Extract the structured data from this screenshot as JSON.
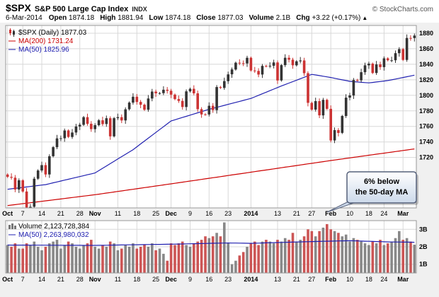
{
  "header": {
    "symbol": "$SPX",
    "name": "S&P 500 Large Cap Index",
    "exchange": "INDX",
    "copyright": "© StockCharts.com",
    "date": "6-Mar-2014",
    "quote": [
      {
        "label": "Open",
        "value": "1874.18"
      },
      {
        "label": "High",
        "value": "1881.94"
      },
      {
        "label": "Low",
        "value": "1874.18"
      },
      {
        "label": "Close",
        "value": "1877.03"
      },
      {
        "label": "Volume",
        "value": "2.1B"
      },
      {
        "label": "Chg",
        "value": "+3.22 (+0.17%)"
      }
    ],
    "chg_arrow": "▲"
  },
  "price_pane": {
    "legend_symbol": "$SPX (Daily) 1877.03",
    "legend_ma200": "MA(200) 1731.24",
    "legend_ma50": "MA(50) 1825.96"
  },
  "volume_pane": {
    "legend_volume": "Volume 2,123,728,384",
    "legend_ma50": "MA(50) 2,263,980,032"
  },
  "annotation": {
    "line1": "6% below",
    "line2": "the 50-day MA"
  },
  "colors": {
    "candle_up": "#333333",
    "candle_down": "#cc3333",
    "ma200": "#cc0000",
    "ma50": "#2020b0",
    "vol_up": "#888888",
    "vol_down": "#cc5555",
    "vol_ma": "#2020b0",
    "grid": "#d8d8d8",
    "frame": "#999999",
    "annotation_border": "#55607a",
    "annotation_fill": "#ccd9ea"
  },
  "chart_data": {
    "type": "candlestick+volume",
    "title": "$SPX S&P 500 Large Cap Index (Daily) with MA(50), MA(200) and Volume",
    "y_axis_price": {
      "ticks": [
        1880,
        1860,
        1840,
        1820,
        1800,
        1780,
        1760,
        1740,
        1720
      ],
      "range": [
        1655,
        1890
      ]
    },
    "y_axis_volume": {
      "ticks": [
        {
          "v": 3,
          "label": "3B"
        },
        {
          "v": 2,
          "label": "2B"
        },
        {
          "v": 1,
          "label": "1B"
        }
      ],
      "range": [
        0.5,
        3.5
      ]
    },
    "x_ticks": [
      {
        "i": 0,
        "label": "Oct"
      },
      {
        "i": 4,
        "label": "7"
      },
      {
        "i": 9,
        "label": "14"
      },
      {
        "i": 14,
        "label": "21"
      },
      {
        "i": 19,
        "label": "28"
      },
      {
        "i": 23,
        "label": "Nov"
      },
      {
        "i": 29,
        "label": "11"
      },
      {
        "i": 34,
        "label": "18"
      },
      {
        "i": 39,
        "label": "25"
      },
      {
        "i": 43,
        "label": "Dec"
      },
      {
        "i": 48,
        "label": "9"
      },
      {
        "i": 53,
        "label": "16"
      },
      {
        "i": 58,
        "label": "23"
      },
      {
        "i": 64,
        "label": "2014"
      },
      {
        "i": 71,
        "label": "13"
      },
      {
        "i": 76,
        "label": "21"
      },
      {
        "i": 80,
        "label": "27"
      },
      {
        "i": 85,
        "label": "Feb"
      },
      {
        "i": 90,
        "label": "10"
      },
      {
        "i": 95,
        "label": "18"
      },
      {
        "i": 99,
        "label": "24"
      },
      {
        "i": 104,
        "label": "Mar"
      }
    ],
    "closes": [
      1695.0,
      1693.9,
      1678.7,
      1690.5,
      1676.1,
      1655.5,
      1656.4,
      1692.6,
      1703.2,
      1710.1,
      1698.1,
      1721.5,
      1733.2,
      1744.5,
      1744.7,
      1754.7,
      1746.4,
      1752.1,
      1759.8,
      1762.1,
      1771.9,
      1763.3,
      1756.5,
      1761.6,
      1767.9,
      1763.0,
      1770.5,
      1747.2,
      1770.6,
      1771.9,
      1767.7,
      1782.0,
      1790.6,
      1798.2,
      1791.5,
      1787.9,
      1781.4,
      1795.9,
      1804.8,
      1802.5,
      1802.8,
      1807.2,
      1805.8,
      1800.9,
      1795.2,
      1792.8,
      1785.0,
      1805.1,
      1808.4,
      1802.6,
      1782.2,
      1775.5,
      1775.3,
      1786.5,
      1781.0,
      1810.7,
      1809.6,
      1818.3,
      1827.0,
      1833.3,
      1842.0,
      1841.4,
      1841.1,
      1848.4,
      1832.0,
      1831.4,
      1826.8,
      1837.9,
      1837.5,
      1838.1,
      1842.4,
      1819.2,
      1838.9,
      1848.4,
      1845.9,
      1838.7,
      1843.8,
      1844.9,
      1828.5,
      1790.3,
      1781.6,
      1792.5,
      1774.2,
      1794.2,
      1782.6,
      1741.9,
      1755.2,
      1751.6,
      1773.4,
      1797.0,
      1799.8,
      1819.8,
      1819.3,
      1829.8,
      1838.6,
      1840.8,
      1828.8,
      1839.8,
      1836.3,
      1847.6,
      1845.1,
      1845.2,
      1854.3,
      1859.5,
      1845.7,
      1873.9,
      1873.8,
      1877.0
    ],
    "volumes_billions": [
      2.1,
      2.0,
      2.2,
      1.9,
      1.9,
      2.2,
      2.1,
      2.3,
      2.0,
      1.8,
      2.0,
      2.2,
      2.3,
      2.4,
      1.9,
      2.1,
      2.3,
      2.2,
      2.0,
      1.9,
      2.1,
      2.2,
      2.4,
      2.0,
      1.9,
      2.1,
      2.0,
      2.3,
      2.2,
      1.8,
      1.9,
      2.1,
      2.0,
      2.2,
      1.9,
      2.0,
      2.1,
      2.0,
      2.2,
      1.8,
      1.9,
      1.6,
      1.2,
      2.2,
      2.1,
      2.2,
      2.3,
      2.1,
      2.0,
      2.2,
      2.3,
      2.4,
      2.6,
      2.5,
      2.6,
      2.8,
      2.6,
      3.4,
      2.2,
      1.0,
      1.2,
      1.5,
      1.7,
      2.0,
      2.2,
      2.3,
      2.1,
      2.3,
      2.4,
      2.3,
      2.2,
      2.4,
      2.3,
      2.5,
      2.4,
      2.8,
      2.3,
      2.4,
      2.6,
      3.0,
      2.9,
      2.6,
      2.9,
      3.1,
      3.3,
      3.0,
      2.9,
      2.8,
      2.6,
      2.7,
      2.3,
      2.5,
      2.4,
      2.3,
      2.2,
      2.1,
      2.3,
      2.2,
      2.4,
      2.1,
      2.2,
      2.3,
      2.5,
      2.9,
      2.4,
      2.5,
      2.3,
      2.12
    ],
    "ma50_anchors": [
      [
        0,
        1679
      ],
      [
        10,
        1685
      ],
      [
        23,
        1700
      ],
      [
        33,
        1730
      ],
      [
        43,
        1767
      ],
      [
        53,
        1782
      ],
      [
        64,
        1796
      ],
      [
        72,
        1812
      ],
      [
        80,
        1827
      ],
      [
        85,
        1823
      ],
      [
        90,
        1818
      ],
      [
        95,
        1816
      ],
      [
        100,
        1819
      ],
      [
        107,
        1826
      ]
    ],
    "ma200_anchors": [
      [
        0,
        1658
      ],
      [
        23,
        1672
      ],
      [
        43,
        1686
      ],
      [
        64,
        1701
      ],
      [
        85,
        1716
      ],
      [
        107,
        1731
      ]
    ],
    "vol_ma50_anchors": [
      [
        0,
        2.1
      ],
      [
        23,
        2.08
      ],
      [
        43,
        2.15
      ],
      [
        58,
        2.22
      ],
      [
        64,
        2.2
      ],
      [
        80,
        2.3
      ],
      [
        90,
        2.35
      ],
      [
        100,
        2.28
      ],
      [
        107,
        2.26
      ]
    ]
  }
}
